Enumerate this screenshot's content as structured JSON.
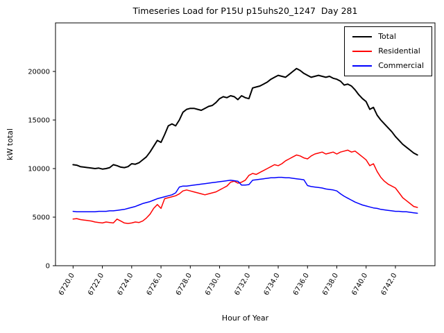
{
  "chart_data": {
    "type": "line",
    "title": "Timeseries Load for P15U p15uhs20_1247  Day 281",
    "xlabel": "Hour of Year",
    "ylabel": "kW total",
    "xlim": [
      6718.8,
      6744.7
    ],
    "ylim": [
      0,
      25000
    ],
    "grid": false,
    "legend_position": "upper right",
    "xticks": {
      "values": [
        6720,
        6722,
        6724,
        6726,
        6728,
        6730,
        6732,
        6734,
        6736,
        6738,
        6740,
        6742
      ],
      "labels": [
        "6720.0",
        "6722.0",
        "6724.0",
        "6726.0",
        "6728.0",
        "6730.0",
        "6732.0",
        "6734.0",
        "6736.0",
        "6738.0",
        "6740.0",
        "6742.0"
      ]
    },
    "yticks": {
      "values": [
        0,
        5000,
        10000,
        15000,
        20000
      ],
      "labels": [
        "0",
        "5000",
        "10000",
        "15000",
        "20000"
      ]
    },
    "x_start": 6720.0,
    "x_step": 0.25,
    "series": [
      {
        "name": "Total",
        "color": "#000000",
        "line_width": 2,
        "values": [
          10400,
          10350,
          10200,
          10150,
          10100,
          10050,
          10000,
          10050,
          9950,
          10000,
          10100,
          10400,
          10300,
          10150,
          10100,
          10200,
          10500,
          10450,
          10600,
          10900,
          11200,
          11700,
          12300,
          12900,
          12700,
          13500,
          14400,
          14600,
          14400,
          15000,
          15800,
          16100,
          16200,
          16200,
          16100,
          16000,
          16200,
          16400,
          16500,
          16800,
          17200,
          17400,
          17300,
          17500,
          17400,
          17100,
          17500,
          17300,
          17200,
          18300,
          18400,
          18500,
          18700,
          18900,
          19200,
          19400,
          19600,
          19500,
          19400,
          19700,
          20000,
          20300,
          20100,
          19800,
          19600,
          19400,
          19500,
          19600,
          19500,
          19400,
          19500,
          19300,
          19200,
          19000,
          18600,
          18700,
          18500,
          18100,
          17600,
          17200,
          16900,
          16100,
          16300,
          15500,
          15000,
          14600,
          14200,
          13800,
          13300,
          12900,
          12500,
          12200,
          11900,
          11600,
          11400
        ]
      },
      {
        "name": "Residential",
        "color": "#ff0000",
        "line_width": 1.5,
        "values": [
          4800,
          4850,
          4750,
          4700,
          4650,
          4600,
          4500,
          4450,
          4400,
          4500,
          4450,
          4400,
          4800,
          4600,
          4400,
          4350,
          4400,
          4500,
          4450,
          4600,
          4900,
          5300,
          5900,
          6300,
          5900,
          6900,
          7000,
          7100,
          7200,
          7400,
          7700,
          7800,
          7700,
          7600,
          7500,
          7400,
          7300,
          7400,
          7500,
          7600,
          7800,
          8000,
          8200,
          8600,
          8700,
          8500,
          8600,
          8800,
          9300,
          9500,
          9400,
          9600,
          9800,
          10000,
          10200,
          10400,
          10300,
          10500,
          10800,
          11000,
          11200,
          11400,
          11300,
          11100,
          11000,
          11300,
          11500,
          11600,
          11700,
          11500,
          11600,
          11700,
          11500,
          11700,
          11800,
          11900,
          11700,
          11800,
          11500,
          11200,
          10900,
          10300,
          10500,
          9700,
          9100,
          8700,
          8400,
          8200,
          8000,
          7500,
          7000,
          6700,
          6400,
          6100,
          6000
        ]
      },
      {
        "name": "Commercial",
        "color": "#0000ff",
        "line_width": 1.5,
        "values": [
          5600,
          5550,
          5550,
          5550,
          5550,
          5550,
          5550,
          5600,
          5600,
          5600,
          5650,
          5650,
          5700,
          5750,
          5800,
          5900,
          6000,
          6100,
          6250,
          6400,
          6500,
          6600,
          6750,
          6900,
          7000,
          7100,
          7200,
          7300,
          7500,
          8100,
          8200,
          8200,
          8250,
          8300,
          8350,
          8400,
          8450,
          8500,
          8550,
          8600,
          8650,
          8700,
          8750,
          8800,
          8750,
          8700,
          8300,
          8300,
          8350,
          8800,
          8850,
          8900,
          8950,
          9000,
          9050,
          9050,
          9100,
          9100,
          9050,
          9050,
          9000,
          8950,
          8900,
          8850,
          8250,
          8150,
          8100,
          8050,
          8000,
          7900,
          7850,
          7800,
          7700,
          7400,
          7150,
          6950,
          6750,
          6550,
          6400,
          6250,
          6150,
          6050,
          5950,
          5900,
          5800,
          5750,
          5700,
          5650,
          5600,
          5600,
          5550,
          5550,
          5500,
          5450,
          5400
        ]
      }
    ]
  }
}
